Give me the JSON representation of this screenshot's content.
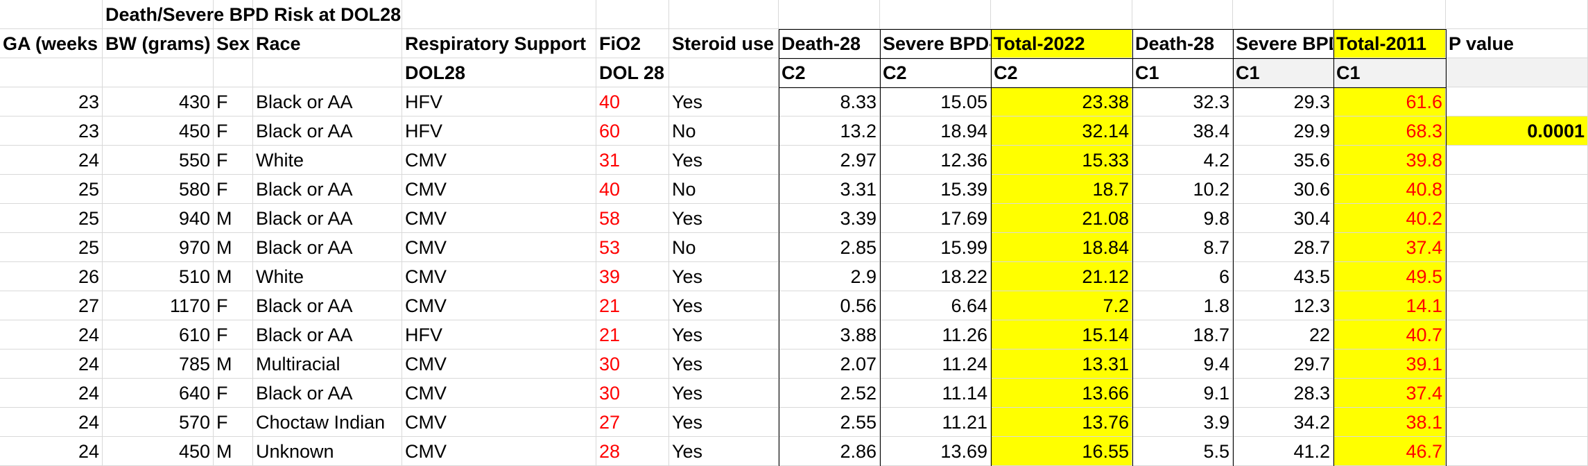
{
  "sheet": {
    "title": "Death/Severe BPD Risk at DOL28",
    "headers": {
      "ga": "GA (weeks",
      "bw": "BW (grams)",
      "sex": "Sex",
      "race": "Race",
      "resp": "Respiratory Support",
      "fio2": "FiO2",
      "steroid": "Steroid use",
      "death28_c2": "Death-28",
      "severe_c2": "Severe BPD-",
      "total2022": "Total-2022",
      "death28_c1": "Death-28",
      "severe_c1": "Severe BPD",
      "total2011": "Total-2011",
      "pvalue": "P value"
    },
    "subheaders": {
      "resp": "DOL28",
      "fio2": "DOL 28",
      "death28_c2": "C2",
      "severe_c2": "C2",
      "total2022": "C2",
      "death28_c1": "C1",
      "severe_c1": "C1",
      "total2011": "C1"
    },
    "pvalue_value": "0.0001",
    "rows": [
      {
        "ga": "23",
        "bw": "430",
        "sex": "F",
        "race": "Black or AA",
        "resp": "HFV",
        "fio2": "40",
        "steroid": "Yes",
        "d2": "8.33",
        "s2": "15.05",
        "t2": "23.38",
        "d1": "32.3",
        "s1": "29.3",
        "t1": "61.6"
      },
      {
        "ga": "23",
        "bw": "450",
        "sex": "F",
        "race": "Black or AA",
        "resp": "HFV",
        "fio2": "60",
        "steroid": "No",
        "d2": "13.2",
        "s2": "18.94",
        "t2": "32.14",
        "d1": "38.4",
        "s1": "29.9",
        "t1": "68.3"
      },
      {
        "ga": "24",
        "bw": "550",
        "sex": "F",
        "race": "White",
        "resp": "CMV",
        "fio2": "31",
        "steroid": "Yes",
        "d2": "2.97",
        "s2": "12.36",
        "t2": "15.33",
        "d1": "4.2",
        "s1": "35.6",
        "t1": "39.8"
      },
      {
        "ga": "25",
        "bw": "580",
        "sex": "F",
        "race": "Black or AA",
        "resp": "CMV",
        "fio2": "40",
        "steroid": "No",
        "d2": "3.31",
        "s2": "15.39",
        "t2": "18.7",
        "d1": "10.2",
        "s1": "30.6",
        "t1": "40.8"
      },
      {
        "ga": "25",
        "bw": "940",
        "sex": "M",
        "race": "Black or AA",
        "resp": "CMV",
        "fio2": "58",
        "steroid": "Yes",
        "d2": "3.39",
        "s2": "17.69",
        "t2": "21.08",
        "d1": "9.8",
        "s1": "30.4",
        "t1": "40.2"
      },
      {
        "ga": "25",
        "bw": "970",
        "sex": "M",
        "race": "Black or AA",
        "resp": "CMV",
        "fio2": "53",
        "steroid": "No",
        "d2": "2.85",
        "s2": "15.99",
        "t2": "18.84",
        "d1": "8.7",
        "s1": "28.7",
        "t1": "37.4"
      },
      {
        "ga": "26",
        "bw": "510",
        "sex": "M",
        "race": "White",
        "resp": "CMV",
        "fio2": "39",
        "steroid": "Yes",
        "d2": "2.9",
        "s2": "18.22",
        "t2": "21.12",
        "d1": "6",
        "s1": "43.5",
        "t1": "49.5"
      },
      {
        "ga": "27",
        "bw": "1170",
        "sex": "F",
        "race": "Black or AA",
        "resp": "CMV",
        "fio2": "21",
        "steroid": "Yes",
        "d2": "0.56",
        "s2": "6.64",
        "t2": "7.2",
        "d1": "1.8",
        "s1": "12.3",
        "t1": "14.1"
      },
      {
        "ga": "24",
        "bw": "610",
        "sex": "F",
        "race": "Black or AA",
        "resp": "HFV",
        "fio2": "21",
        "steroid": "Yes",
        "d2": "3.88",
        "s2": "11.26",
        "t2": "15.14",
        "d1": "18.7",
        "s1": "22",
        "t1": "40.7"
      },
      {
        "ga": "24",
        "bw": "785",
        "sex": "M",
        "race": "Multiracial",
        "resp": "CMV",
        "fio2": "30",
        "steroid": "Yes",
        "d2": "2.07",
        "s2": "11.24",
        "t2": "13.31",
        "d1": "9.4",
        "s1": "29.7",
        "t1": "39.1"
      },
      {
        "ga": "24",
        "bw": "640",
        "sex": "F",
        "race": "Black or AA",
        "resp": "CMV",
        "fio2": "30",
        "steroid": "Yes",
        "d2": "2.52",
        "s2": "11.14",
        "t2": "13.66",
        "d1": "9.1",
        "s1": "28.3",
        "t1": "37.4"
      },
      {
        "ga": "24",
        "bw": "570",
        "sex": "F",
        "race": "Choctaw Indian",
        "resp": "CMV",
        "fio2": "27",
        "steroid": "Yes",
        "d2": "2.55",
        "s2": "11.21",
        "t2": "13.76",
        "d1": "3.9",
        "s1": "34.2",
        "t1": "38.1"
      },
      {
        "ga": "24",
        "bw": "450",
        "sex": "M",
        "race": "Unknown",
        "resp": "CMV",
        "fio2": "28",
        "steroid": "Yes",
        "d2": "2.86",
        "s2": "13.69",
        "t2": "16.55",
        "d1": "5.5",
        "s1": "41.2",
        "t1": "46.7"
      }
    ]
  }
}
